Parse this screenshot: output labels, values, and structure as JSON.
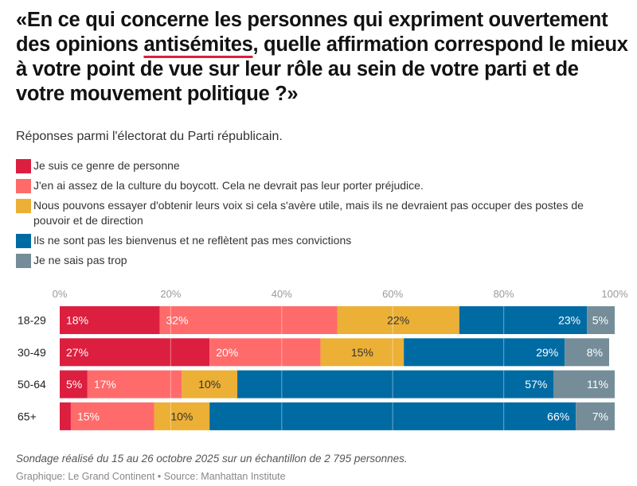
{
  "title": {
    "before": "«En ce qui concerne les personnes qui expriment ouvertement des opinions ",
    "highlight": "antisémites",
    "after": ", quelle affirmation correspond le mieux à votre point de vue sur leur rôle au sein de votre parti et de votre mouvement politique ?»"
  },
  "subtitle": "Réponses parmi l'électorat du Parti républicain.",
  "legend": [
    {
      "label": "Je suis ce genre de personne",
      "color": "#DC1F3F"
    },
    {
      "label": "J'en ai assez de la culture du boycott. Cela ne devrait pas leur porter préjudice.",
      "color": "#FF6B6B"
    },
    {
      "label": "Nous pouvons essayer d'obtenir leurs voix si cela s'avère utile, mais ils ne devraient pas occuper des postes de pouvoir et de direction",
      "color": "#EBB035"
    },
    {
      "label": "Ils ne sont pas les bienvenus et ne reflètent pas mes convictions",
      "color": "#006BA2"
    },
    {
      "label": "Je ne sais pas trop",
      "color": "#758D99"
    }
  ],
  "chart_data": {
    "type": "bar",
    "orientation": "horizontal",
    "stacked": true,
    "title": "«En ce qui concerne les personnes qui expriment ouvertement des opinions antisémites, quelle affirmation correspond le mieux à votre point de vue sur leur rôle au sein de votre parti et de votre mouvement politique ?»",
    "subtitle": "Réponses parmi l'électorat du Parti républicain.",
    "categories": [
      "18-29",
      "30-49",
      "50-64",
      "65+"
    ],
    "series": [
      {
        "name": "Je suis ce genre de personne",
        "color": "#DC1F3F",
        "values": [
          18,
          27,
          5,
          2
        ],
        "labels": [
          "18%",
          "27%",
          "5%",
          ""
        ]
      },
      {
        "name": "J'en ai assez de la culture du boycott. Cela ne devrait pas leur porter préjudice.",
        "color": "#FF6B6B",
        "values": [
          32,
          20,
          17,
          15
        ],
        "labels": [
          "32%",
          "20%",
          "17%",
          "15%"
        ]
      },
      {
        "name": "Nous pouvons essayer d'obtenir leurs voix si cela s'avère utile, mais ils ne devraient pas occuper des postes de pouvoir et de direction",
        "color": "#EBB035",
        "values": [
          22,
          15,
          10,
          10
        ],
        "labels": [
          "22%",
          "15%",
          "10%",
          "10%"
        ]
      },
      {
        "name": "Ils ne sont pas les bienvenus et ne reflètent pas mes convictions",
        "color": "#006BA2",
        "values": [
          23,
          29,
          57,
          66
        ],
        "labels": [
          "23%",
          "29%",
          "57%",
          "66%"
        ]
      },
      {
        "name": "Je ne sais pas trop",
        "color": "#758D99",
        "values": [
          5,
          8,
          11,
          7
        ],
        "labels": [
          "5%",
          "8%",
          "11%",
          "7%"
        ]
      }
    ],
    "label_align": [
      "left",
      "left",
      "center",
      "right",
      "right"
    ],
    "label_dark": [
      false,
      false,
      true,
      false,
      false
    ],
    "xlim": [
      0,
      100
    ],
    "xticks": [
      0,
      20,
      40,
      60,
      80,
      100
    ],
    "xtick_labels": [
      "0%",
      "20%",
      "40%",
      "60%",
      "80%",
      "100%"
    ],
    "xaxis_position": "top",
    "grid": true,
    "legend_position": "top-left"
  },
  "footnote": "Sondage réalisé du 15 au 26 octobre 2025 sur un échantillon de 2 795 personnes.",
  "source": "Graphique: Le Grand Continent • Source: Manhattan Institute"
}
